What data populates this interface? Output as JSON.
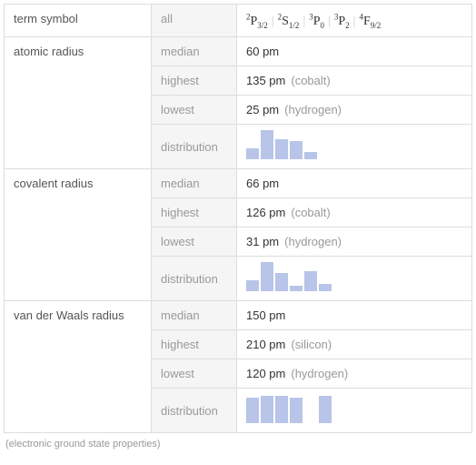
{
  "rows": [
    {
      "label": "term symbol",
      "sub": [
        {
          "stat": "all",
          "type": "terms",
          "terms": [
            {
              "sup": "2",
              "letter": "P",
              "sub": "3/2"
            },
            {
              "sup": "2",
              "letter": "S",
              "sub": "1/2"
            },
            {
              "sup": "3",
              "letter": "P",
              "sub": "0"
            },
            {
              "sup": "3",
              "letter": "P",
              "sub": "2"
            },
            {
              "sup": "4",
              "letter": "F",
              "sub": "9/2"
            }
          ]
        }
      ]
    },
    {
      "label": "atomic radius",
      "sub": [
        {
          "stat": "median",
          "value": "60 pm"
        },
        {
          "stat": "highest",
          "value": "135 pm",
          "note": "(cobalt)"
        },
        {
          "stat": "lowest",
          "value": "25 pm",
          "note": "(hydrogen)"
        },
        {
          "stat": "distribution",
          "type": "dist",
          "bars": [
            12,
            32,
            22,
            20,
            8
          ]
        }
      ]
    },
    {
      "label": "covalent radius",
      "sub": [
        {
          "stat": "median",
          "value": "66 pm"
        },
        {
          "stat": "highest",
          "value": "126 pm",
          "note": "(cobalt)"
        },
        {
          "stat": "lowest",
          "value": "31 pm",
          "note": "(hydrogen)"
        },
        {
          "stat": "distribution",
          "type": "dist",
          "bars": [
            12,
            32,
            20,
            6,
            22,
            8
          ]
        }
      ]
    },
    {
      "label": "van der Waals radius",
      "sub": [
        {
          "stat": "median",
          "value": "150 pm"
        },
        {
          "stat": "highest",
          "value": "210 pm",
          "note": "(silicon)"
        },
        {
          "stat": "lowest",
          "value": "120 pm",
          "note": "(hydrogen)"
        },
        {
          "stat": "distribution",
          "type": "dist",
          "bars": [
            28,
            30,
            30,
            28,
            0,
            30
          ]
        }
      ]
    }
  ],
  "caption": "(electronic ground state properties)",
  "bar_color": "#b8c5e8"
}
